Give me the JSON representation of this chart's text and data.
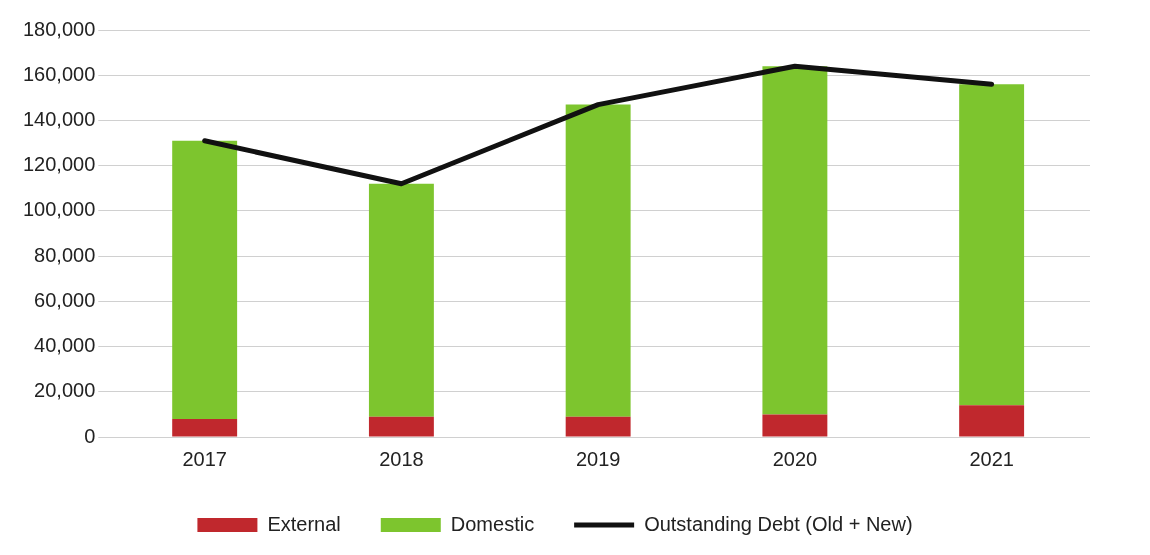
{
  "chart_data": {
    "type": "bar",
    "stacked": true,
    "categories": [
      "2017",
      "2018",
      "2019",
      "2020",
      "2021"
    ],
    "series": [
      {
        "name": "External",
        "color": "#c0282d",
        "values": [
          8000,
          9000,
          9000,
          10000,
          14000
        ]
      },
      {
        "name": "Domestic",
        "color": "#7dc52e",
        "values": [
          123000,
          103000,
          138000,
          154000,
          142000
        ]
      },
      {
        "name": "Outstanding Debt (Old + New)",
        "type": "line",
        "color": "#111111",
        "marker": "none",
        "values": [
          131000,
          112000,
          147000,
          164000,
          156000
        ]
      }
    ],
    "ylim": [
      0,
      180000
    ],
    "yticks": [
      0,
      {
        "value": 20000,
        "label": "20,000"
      },
      {
        "value": 40000,
        "label": "40,000"
      },
      {
        "value": 60000,
        "label": "60,000"
      },
      {
        "value": 80000,
        "label": "80,000"
      },
      {
        "value": 100000,
        "label": "100,000"
      },
      {
        "value": 120000,
        "label": "120,000"
      },
      {
        "value": 140000,
        "label": "140,000"
      },
      {
        "value": 160000,
        "label": "160,000"
      },
      {
        "value": 180000,
        "label": "180,000"
      }
    ],
    "grid": "y",
    "legend": "bottom"
  }
}
